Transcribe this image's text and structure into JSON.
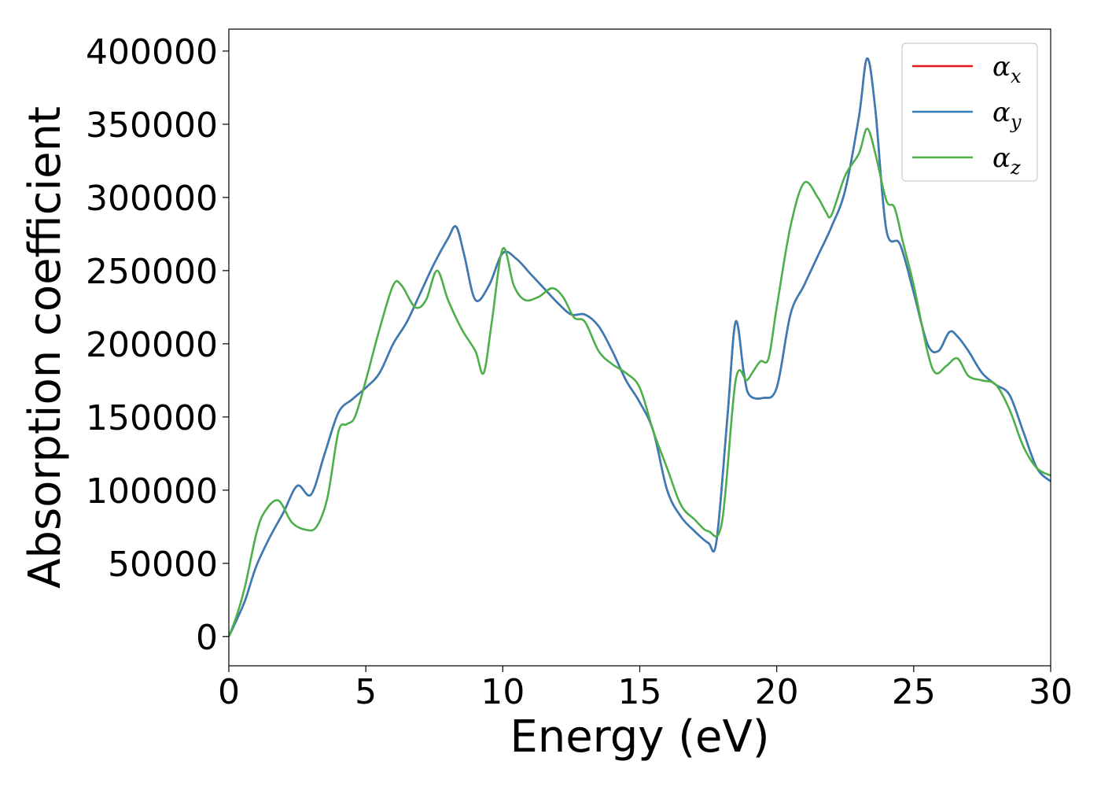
{
  "chart_data": {
    "type": "line",
    "title": "",
    "xlabel": "Energy (eV)",
    "ylabel": "Absorption coefficient",
    "xlim": [
      0,
      30
    ],
    "ylim": [
      -20000,
      415000
    ],
    "xticks": [
      0,
      5,
      10,
      15,
      20,
      25,
      30
    ],
    "yticks": [
      0,
      50000,
      100000,
      150000,
      200000,
      250000,
      300000,
      350000,
      400000
    ],
    "xtick_labels": [
      "0",
      "5",
      "10",
      "15",
      "20",
      "25",
      "30"
    ],
    "ytick_labels": [
      "0",
      "50000",
      "100000",
      "150000",
      "200000",
      "250000",
      "300000",
      "350000",
      "400000"
    ],
    "grid": false,
    "legend_position": "top-right",
    "series": [
      {
        "name": "α_x",
        "symbol": "α",
        "subscript": "x",
        "color": "#e41a1c",
        "x": [
          0,
          0.3,
          0.6,
          1.0,
          1.5,
          2.0,
          2.5,
          3.0,
          3.5,
          4.0,
          4.5,
          5.0,
          5.5,
          6.0,
          6.5,
          7.0,
          7.5,
          8.0,
          8.3,
          8.6,
          9.0,
          9.5,
          10.0,
          10.5,
          11.0,
          11.5,
          12.0,
          12.5,
          13.0,
          13.5,
          14.0,
          14.5,
          15.0,
          15.5,
          16.0,
          16.5,
          17.0,
          17.5,
          17.8,
          18.2,
          18.5,
          18.8,
          19.0,
          19.5,
          20.0,
          20.5,
          21.0,
          21.5,
          22.0,
          22.5,
          23.0,
          23.3,
          23.6,
          24.0,
          24.5,
          25.0,
          25.5,
          25.9,
          26.3,
          26.6,
          27.0,
          27.5,
          28.0,
          28.5,
          29.0,
          29.5,
          30.0
        ],
        "y": [
          0,
          12000,
          25000,
          48000,
          68000,
          85000,
          103000,
          97000,
          125000,
          153000,
          162000,
          170000,
          180000,
          200000,
          215000,
          235000,
          255000,
          272000,
          280000,
          260000,
          230000,
          240000,
          262000,
          258000,
          248000,
          238000,
          228000,
          220000,
          220000,
          212000,
          195000,
          175000,
          160000,
          140000,
          100000,
          82000,
          72000,
          64000,
          65000,
          150000,
          215000,
          180000,
          165000,
          163000,
          170000,
          220000,
          240000,
          260000,
          280000,
          305000,
          355000,
          395000,
          360000,
          278000,
          268000,
          235000,
          200000,
          195000,
          208000,
          205000,
          195000,
          180000,
          172000,
          165000,
          140000,
          115000,
          106000
        ]
      },
      {
        "name": "α_y",
        "symbol": "α",
        "subscript": "y",
        "color": "#377eb8",
        "x": [
          0,
          0.3,
          0.6,
          1.0,
          1.5,
          2.0,
          2.5,
          3.0,
          3.5,
          4.0,
          4.5,
          5.0,
          5.5,
          6.0,
          6.5,
          7.0,
          7.5,
          8.0,
          8.3,
          8.6,
          9.0,
          9.5,
          10.0,
          10.5,
          11.0,
          11.5,
          12.0,
          12.5,
          13.0,
          13.5,
          14.0,
          14.5,
          15.0,
          15.5,
          16.0,
          16.5,
          17.0,
          17.5,
          17.8,
          18.2,
          18.5,
          18.8,
          19.0,
          19.5,
          20.0,
          20.5,
          21.0,
          21.5,
          22.0,
          22.5,
          23.0,
          23.3,
          23.6,
          24.0,
          24.5,
          25.0,
          25.5,
          25.9,
          26.3,
          26.6,
          27.0,
          27.5,
          28.0,
          28.5,
          29.0,
          29.5,
          30.0
        ],
        "y": [
          0,
          12000,
          25000,
          48000,
          68000,
          85000,
          103000,
          97000,
          125000,
          153000,
          162000,
          170000,
          180000,
          200000,
          215000,
          235000,
          255000,
          272000,
          280000,
          260000,
          230000,
          240000,
          262000,
          258000,
          248000,
          238000,
          228000,
          220000,
          220000,
          212000,
          195000,
          175000,
          160000,
          140000,
          100000,
          82000,
          72000,
          64000,
          65000,
          150000,
          215000,
          180000,
          165000,
          163000,
          170000,
          220000,
          240000,
          260000,
          280000,
          305000,
          355000,
          395000,
          360000,
          278000,
          268000,
          235000,
          200000,
          195000,
          208000,
          205000,
          195000,
          180000,
          172000,
          165000,
          140000,
          115000,
          106000
        ]
      },
      {
        "name": "α_z",
        "symbol": "α",
        "subscript": "z",
        "color": "#4daf4a",
        "x": [
          0,
          0.3,
          0.6,
          1.0,
          1.3,
          1.8,
          2.3,
          2.8,
          3.2,
          3.6,
          4.0,
          4.3,
          4.6,
          5.0,
          5.5,
          6.0,
          6.3,
          6.8,
          7.2,
          7.6,
          8.0,
          8.5,
          9.0,
          9.3,
          9.6,
          10.0,
          10.4,
          10.8,
          11.3,
          11.8,
          12.2,
          12.6,
          13.0,
          13.5,
          14.0,
          14.5,
          15.0,
          15.5,
          16.0,
          16.5,
          17.0,
          17.5,
          18.0,
          18.5,
          18.9,
          19.1,
          19.4,
          19.7,
          20.0,
          20.5,
          21.0,
          21.5,
          21.8,
          22.0,
          22.5,
          23.0,
          23.3,
          23.6,
          24.0,
          24.3,
          24.6,
          25.0,
          25.5,
          25.8,
          26.2,
          26.6,
          27.0,
          27.5,
          28.0,
          28.5,
          29.0,
          29.5,
          30.0
        ],
        "y": [
          0,
          15000,
          35000,
          70000,
          85000,
          93000,
          78000,
          73000,
          75000,
          95000,
          140000,
          145000,
          150000,
          175000,
          210000,
          240000,
          240000,
          225000,
          230000,
          250000,
          230000,
          210000,
          195000,
          180000,
          215000,
          265000,
          240000,
          230000,
          232000,
          238000,
          232000,
          218000,
          215000,
          195000,
          186000,
          180000,
          170000,
          140000,
          115000,
          90000,
          80000,
          72000,
          78000,
          175000,
          175000,
          180000,
          188000,
          190000,
          225000,
          280000,
          310000,
          300000,
          290000,
          288000,
          315000,
          330000,
          347000,
          330000,
          298000,
          293000,
          270000,
          240000,
          195000,
          180000,
          185000,
          190000,
          178000,
          175000,
          172000,
          155000,
          130000,
          115000,
          110000
        ]
      }
    ]
  }
}
